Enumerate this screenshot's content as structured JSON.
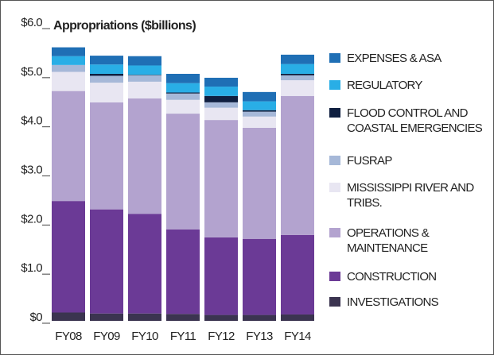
{
  "chart_data": {
    "type": "stacked-bar",
    "title": "Appropriations ($billions)",
    "categories": [
      "FY08",
      "FY09",
      "FY10",
      "FY11",
      "FY12",
      "FY13",
      "FY14"
    ],
    "series": [
      {
        "name": "INVESTIGATIONS",
        "color": "#3b3450",
        "values": [
          0.17,
          0.15,
          0.15,
          0.14,
          0.12,
          0.12,
          0.13
        ]
      },
      {
        "name": "CONSTRUCTION",
        "color": "#6b3a96",
        "values": [
          2.27,
          2.12,
          2.03,
          1.72,
          1.58,
          1.55,
          1.62
        ]
      },
      {
        "name": "OPERATIONS & MAINTENANCE",
        "color": "#b3a3cf",
        "values": [
          2.24,
          2.18,
          2.35,
          2.36,
          2.39,
          2.26,
          2.83
        ]
      },
      {
        "name": "MISSISSIPPI RIVER AND TRIBS.",
        "color": "#e8e6f2",
        "values": [
          0.39,
          0.4,
          0.34,
          0.28,
          0.25,
          0.23,
          0.32
        ]
      },
      {
        "name": "FUSRAP",
        "color": "#a6b8d8",
        "values": [
          0.14,
          0.14,
          0.13,
          0.13,
          0.11,
          0.1,
          0.1
        ]
      },
      {
        "name": "FLOOD CONTROL AND COASTAL EMERGENCIES",
        "color": "#0f1f40",
        "values": [
          0,
          0.04,
          0.01,
          0.02,
          0.13,
          0.03,
          0.03
        ]
      },
      {
        "name": "REGULATORY",
        "color": "#29aee6",
        "values": [
          0.18,
          0.19,
          0.19,
          0.19,
          0.19,
          0.18,
          0.2
        ]
      },
      {
        "name": "EXPENSES & ASA",
        "color": "#1f6fb5",
        "values": [
          0.18,
          0.18,
          0.19,
          0.19,
          0.18,
          0.19,
          0.19
        ]
      }
    ],
    "ylim": [
      0,
      6
    ],
    "yticks": [
      {
        "value": 0,
        "label": "$0"
      },
      {
        "value": 1,
        "label": "$1.0"
      },
      {
        "value": 2,
        "label": "$2.0"
      },
      {
        "value": 3,
        "label": "$3.0"
      },
      {
        "value": 4,
        "label": "$4.0"
      },
      {
        "value": 5,
        "label": "$5.0"
      },
      {
        "value": 6,
        "label": "$6.0"
      }
    ],
    "legend": "right"
  }
}
